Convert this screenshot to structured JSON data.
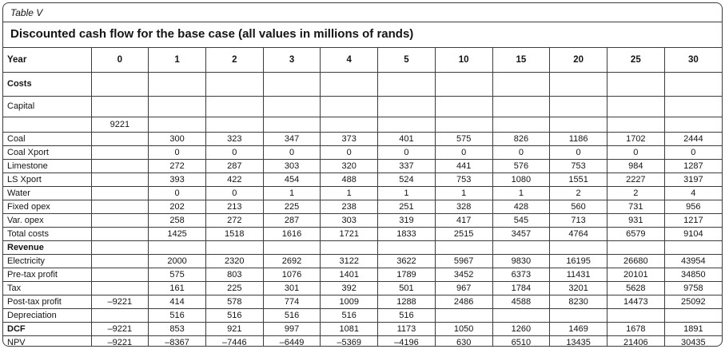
{
  "table": {
    "caption": "Table V",
    "title": "Discounted cash flow for the base case (all values in millions of rands)",
    "columns": [
      "Year",
      "0",
      "1",
      "2",
      "3",
      "4",
      "5",
      "10",
      "15",
      "20",
      "25",
      "30"
    ],
    "rows": [
      {
        "label": "Costs",
        "bold": true,
        "values": [
          "",
          "",
          "",
          "",
          "",
          "",
          "",
          "",
          "",
          "",
          ""
        ]
      },
      {
        "label": "Capital",
        "bold": false,
        "values": [
          "",
          "",
          "",
          "",
          "",
          "",
          "",
          "",
          "",
          "",
          ""
        ]
      },
      {
        "label": "",
        "bold": false,
        "values": [
          "9221",
          "",
          "",
          "",
          "",
          "",
          "",
          "",
          "",
          "",
          ""
        ]
      },
      {
        "label": "Coal",
        "bold": false,
        "values": [
          "",
          "300",
          "323",
          "347",
          "373",
          "401",
          "575",
          "826",
          "1186",
          "1702",
          "2444"
        ]
      },
      {
        "label": "Coal Xport",
        "bold": false,
        "values": [
          "",
          "0",
          "0",
          "0",
          "0",
          "0",
          "0",
          "0",
          "0",
          "0",
          "0"
        ]
      },
      {
        "label": "Limestone",
        "bold": false,
        "values": [
          "",
          "272",
          "287",
          "303",
          "320",
          "337",
          "441",
          "576",
          "753",
          "984",
          "1287"
        ]
      },
      {
        "label": "LS Xport",
        "bold": false,
        "values": [
          "",
          "393",
          "422",
          "454",
          "488",
          "524",
          "753",
          "1080",
          "1551",
          "2227",
          "3197"
        ]
      },
      {
        "label": "Water",
        "bold": false,
        "values": [
          "",
          "0",
          "0",
          "1",
          "1",
          "1",
          "1",
          "1",
          "2",
          "2",
          "4"
        ]
      },
      {
        "label": "Fixed opex",
        "bold": false,
        "values": [
          "",
          "202",
          "213",
          "225",
          "238",
          "251",
          "328",
          "428",
          "560",
          "731",
          "956"
        ]
      },
      {
        "label": "Var. opex",
        "bold": false,
        "values": [
          "",
          "258",
          "272",
          "287",
          "303",
          "319",
          "417",
          "545",
          "713",
          "931",
          "1217"
        ]
      },
      {
        "label": "Total costs",
        "bold": false,
        "values": [
          "",
          "1425",
          "1518",
          "1616",
          "1721",
          "1833",
          "2515",
          "3457",
          "4764",
          "6579",
          "9104"
        ]
      },
      {
        "label": "Revenue",
        "bold": true,
        "values": [
          "",
          "",
          "",
          "",
          "",
          "",
          "",
          "",
          "",
          "",
          ""
        ]
      },
      {
        "label": "Electricity",
        "bold": false,
        "values": [
          "",
          "2000",
          "2320",
          "2692",
          "3122",
          "3622",
          "5967",
          "9830",
          "16195",
          "26680",
          "43954"
        ]
      },
      {
        "label": "Pre-tax profit",
        "bold": false,
        "values": [
          "",
          "575",
          "803",
          "1076",
          "1401",
          "1789",
          "3452",
          "6373",
          "11431",
          "20101",
          "34850"
        ]
      },
      {
        "label": "Tax",
        "bold": false,
        "values": [
          "",
          "161",
          "225",
          "301",
          "392",
          "501",
          "967",
          "1784",
          "3201",
          "5628",
          "9758"
        ]
      },
      {
        "label": "Post-tax profit",
        "bold": false,
        "values": [
          "–9221",
          "414",
          "578",
          "774",
          "1009",
          "1288",
          "2486",
          "4588",
          "8230",
          "14473",
          "25092"
        ]
      },
      {
        "label": "Depreciation",
        "bold": false,
        "values": [
          "",
          "516",
          "516",
          "516",
          "516",
          "516",
          "",
          "",
          "",
          "",
          ""
        ]
      },
      {
        "label": "DCF",
        "bold": true,
        "values": [
          "–9221",
          "853",
          "921",
          "997",
          "1081",
          "1173",
          "1050",
          "1260",
          "1469",
          "1678",
          "1891"
        ]
      },
      {
        "label": "NPV",
        "bold": false,
        "values": [
          "–9221",
          "–8367",
          "–7446",
          "–6449",
          "–5369",
          "–4196",
          "630",
          "6510",
          "13435",
          "21406",
          "30435"
        ]
      }
    ]
  }
}
